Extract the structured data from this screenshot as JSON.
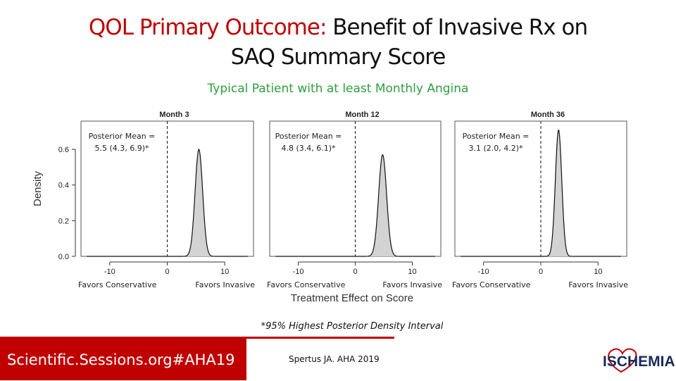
{
  "title": {
    "part1": "QOL Primary Outcome:",
    "part2": " Benefit of Invasive Rx on",
    "line2": "SAQ Summary Score"
  },
  "subtitle": "Typical Patient with at least Monthly Angina",
  "chart_data": {
    "type": "area",
    "ylabel": "Density",
    "xlabel": "Treatment Effect on Score",
    "yticks": [
      "0.0",
      "0.2",
      "0.4",
      "0.6"
    ],
    "ylim": [
      0,
      0.75
    ],
    "xlim": [
      -15,
      15
    ],
    "xticks": [
      "-10",
      "0",
      "10"
    ],
    "reference_line_x": 0,
    "panels": [
      {
        "title": "Month 3",
        "annotation_line1": "Posterior Mean =",
        "annotation_line2": "5.5 (4.3, 6.9)*",
        "mean": 5.5,
        "sd": 0.66,
        "peak_density": 0.6,
        "favors_left": "Favors Conservative",
        "favors_right": "Favors Invasive"
      },
      {
        "title": "Month 12",
        "annotation_line1": "Posterior Mean =",
        "annotation_line2": "4.8 (3.4, 6.1)*",
        "mean": 4.8,
        "sd": 0.7,
        "peak_density": 0.57,
        "favors_left": "Favors Conservative",
        "favors_right": "Favors Invasive"
      },
      {
        "title": "Month 36",
        "annotation_line1": "Posterior Mean =",
        "annotation_line2": "3.1 (2.0, 4.2)*",
        "mean": 3.1,
        "sd": 0.56,
        "peak_density": 0.71,
        "favors_left": "Favors Conservative",
        "favors_right": "Favors Invasive"
      }
    ]
  },
  "footnote": "*95% Highest Posterior Density Interval",
  "footer": {
    "hashtag": "Scientific.Sessions.org#AHA19",
    "citation": "Spertus JA. AHA 2019",
    "logo_text": "ISCHEMIA"
  },
  "colors": {
    "title_red": "#c00000",
    "subtitle_green": "#2e9e3e",
    "curve_fill": "#d3d3d3",
    "footer_red": "#c00000"
  }
}
